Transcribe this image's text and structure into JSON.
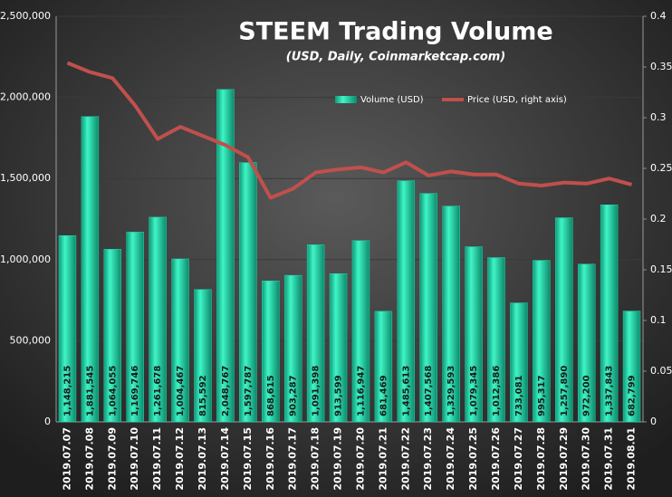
{
  "chart_data": {
    "type": "bar-line",
    "title": "STEEM Trading Volume",
    "subtitle": "(USD, Daily, Coinmarketcap.com)",
    "categories": [
      "2019.07.07",
      "2019.07.08",
      "2019.07.09",
      "2019.07.10",
      "2019.07.11",
      "2019.07.12",
      "2019.07.13",
      "2019.07.14",
      "2019.07.15",
      "2019.07.16",
      "2019.07.17",
      "2019.07.18",
      "2019.07.19",
      "2019.07.20",
      "2019.07.21",
      "2019.07.22",
      "2019.07.23",
      "2019.07.24",
      "2019.07.25",
      "2019.07.26",
      "2019.07.27",
      "2019.07.28",
      "2019.07.29",
      "2019.07.30",
      "2019.07.31",
      "2019.08.01"
    ],
    "series": [
      {
        "name": "Volume (USD)",
        "type": "bar",
        "color": "#22dcae",
        "values": [
          1148215,
          1881545,
          1064055,
          1169746,
          1261678,
          1004467,
          815592,
          2048767,
          1597787,
          868615,
          903287,
          1091398,
          913599,
          1116947,
          681469,
          1485613,
          1407568,
          1329593,
          1079345,
          1012386,
          733081,
          995317,
          1257890,
          972200,
          1337843,
          682799
        ],
        "value_labels": [
          "1,148,215",
          "1,881,545",
          "1,064,055",
          "1,169,746",
          "1,261,678",
          "1,004,467",
          "815,592",
          "2,048,767",
          "1,597,787",
          "868,615",
          "903,287",
          "1,091,398",
          "913,599",
          "1,116,947",
          "681,469",
          "1,485,613",
          "1,407,568",
          "1,329,593",
          "1,079,345",
          "1,012,386",
          "733,081",
          "995,317",
          "1,257,890",
          "972,200",
          "1,337,843",
          "682,799"
        ]
      },
      {
        "name": "Price (USD, right axis)",
        "type": "line",
        "color": "#c0504d",
        "axis": "y2",
        "values": [
          0.354,
          0.345,
          0.339,
          0.312,
          0.279,
          0.291,
          0.282,
          0.273,
          0.261,
          0.221,
          0.23,
          0.246,
          0.249,
          0.251,
          0.246,
          0.256,
          0.243,
          0.247,
          0.244,
          0.244,
          0.235,
          0.233,
          0.236,
          0.235,
          0.24,
          0.234
        ]
      }
    ],
    "ylim": [
      0,
      2500000
    ],
    "yticks": [
      0,
      {
        "value": 500000,
        "label": "500,000"
      },
      {
        "value": 1000000,
        "label": "1,000,000"
      },
      {
        "value": 1500000,
        "label": "1,500,000"
      },
      {
        "value": 2000000,
        "label": "2,000,000"
      },
      {
        "value": 2500000,
        "label": "2,500,000"
      }
    ],
    "y2lim": [
      0,
      0.4
    ],
    "y2ticks": [
      0,
      0.05,
      0.1,
      0.15,
      0.2,
      0.25,
      0.3,
      0.35,
      0.4
    ],
    "grid": true
  }
}
